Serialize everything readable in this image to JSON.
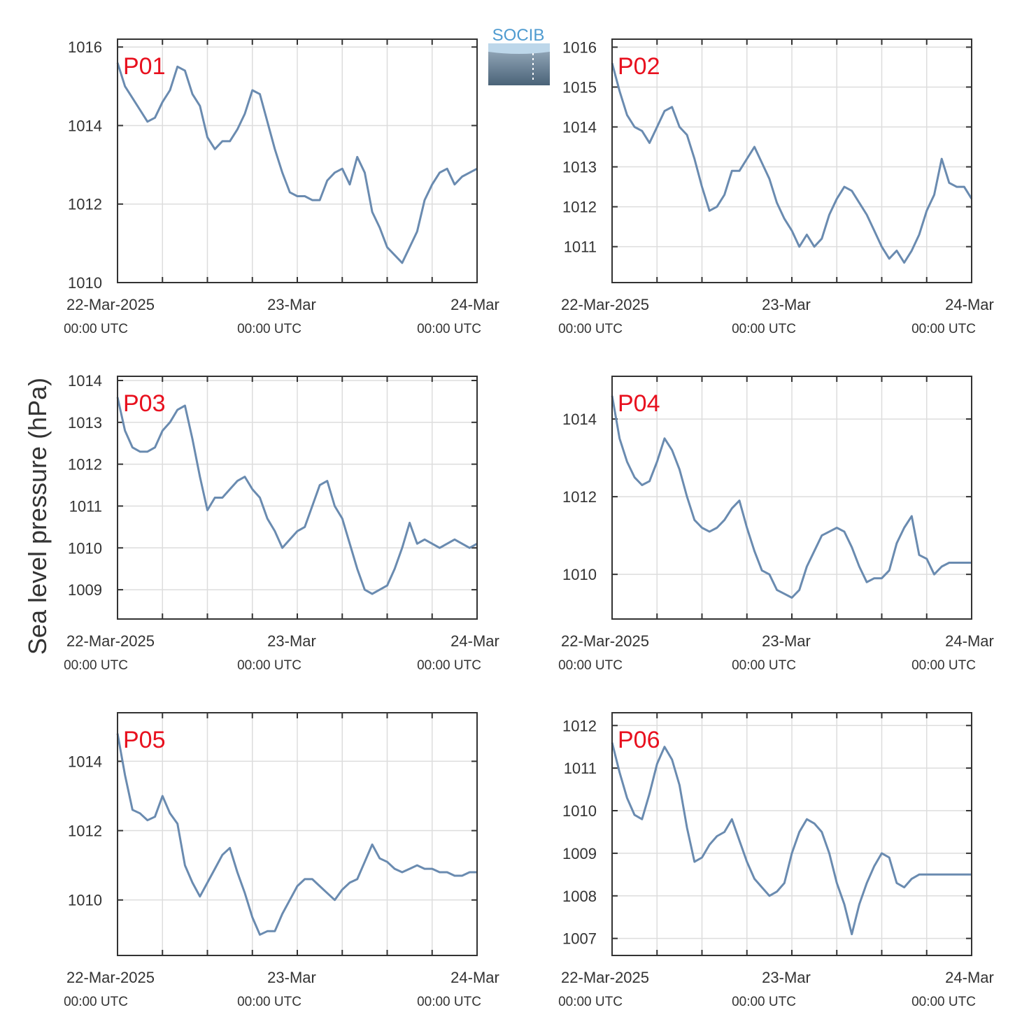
{
  "figure": {
    "ylabel": "Sea level pressure (hPa)",
    "logo_text": "SOCIB"
  },
  "colors": {
    "line": "#6a8bb0",
    "panel_label": "#e8101e",
    "grid": "#dddddd",
    "axis": "#333333"
  },
  "chart_data": [
    {
      "type": "line",
      "name": "P01",
      "x": [
        0,
        1,
        2,
        3,
        4,
        5,
        6,
        7,
        8,
        9,
        10,
        11,
        12,
        13,
        14,
        15,
        16,
        17,
        18,
        19,
        20,
        21,
        22,
        23,
        24,
        25,
        26,
        27,
        28,
        29,
        30,
        31,
        32,
        33,
        34,
        35,
        36,
        37,
        38,
        39,
        40,
        41,
        42,
        43,
        44,
        45,
        46,
        47,
        48
      ],
      "y": [
        1015.6,
        1015.0,
        1014.7,
        1014.4,
        1014.1,
        1014.2,
        1014.6,
        1014.9,
        1015.5,
        1015.4,
        1014.8,
        1014.5,
        1013.7,
        1013.4,
        1013.6,
        1013.6,
        1013.9,
        1014.3,
        1014.9,
        1014.8,
        1014.1,
        1013.4,
        1012.8,
        1012.3,
        1012.2,
        1012.2,
        1012.1,
        1012.1,
        1012.6,
        1012.8,
        1012.9,
        1012.5,
        1013.2,
        1012.8,
        1011.8,
        1011.4,
        1010.9,
        1010.7,
        1010.5,
        1010.9,
        1011.3,
        1012.1,
        1012.5,
        1012.8,
        1012.9,
        1012.5,
        1012.7,
        1012.8,
        1012.9
      ],
      "ylim": [
        1010,
        1016.2
      ],
      "yticks": [
        "1010",
        "1012",
        "1014",
        "1016"
      ],
      "xticks": [
        "22-Mar-2025",
        "23-Mar",
        "24-Mar"
      ],
      "xsub": [
        "00:00 UTC",
        "00:00 UTC",
        "00:00 UTC"
      ]
    },
    {
      "type": "line",
      "name": "P02",
      "x": [
        0,
        1,
        2,
        3,
        4,
        5,
        6,
        7,
        8,
        9,
        10,
        11,
        12,
        13,
        14,
        15,
        16,
        17,
        18,
        19,
        20,
        21,
        22,
        23,
        24,
        25,
        26,
        27,
        28,
        29,
        30,
        31,
        32,
        33,
        34,
        35,
        36,
        37,
        38,
        39,
        40,
        41,
        42,
        43,
        44,
        45,
        46,
        47,
        48
      ],
      "y": [
        1015.6,
        1014.9,
        1014.3,
        1014.0,
        1013.9,
        1013.6,
        1014.0,
        1014.4,
        1014.5,
        1014.0,
        1013.8,
        1013.2,
        1012.5,
        1011.9,
        1012.0,
        1012.3,
        1012.9,
        1012.9,
        1013.2,
        1013.5,
        1013.1,
        1012.7,
        1012.1,
        1011.7,
        1011.4,
        1011.0,
        1011.3,
        1011.0,
        1011.2,
        1011.8,
        1012.2,
        1012.5,
        1012.4,
        1012.1,
        1011.8,
        1011.4,
        1011.0,
        1010.7,
        1010.9,
        1010.6,
        1010.9,
        1011.3,
        1011.9,
        1012.3,
        1013.2,
        1012.6,
        1012.5,
        1012.5,
        1012.2
      ],
      "ylim": [
        1010.1,
        1016.2
      ],
      "yticks": [
        "1011",
        "1012",
        "1013",
        "1014",
        "1015",
        "1016"
      ],
      "xticks": [
        "22-Mar-2025",
        "23-Mar",
        "24-Mar"
      ],
      "xsub": [
        "00:00 UTC",
        "00:00 UTC",
        "00:00 UTC"
      ]
    },
    {
      "type": "line",
      "name": "P03",
      "x": [
        0,
        1,
        2,
        3,
        4,
        5,
        6,
        7,
        8,
        9,
        10,
        11,
        12,
        13,
        14,
        15,
        16,
        17,
        18,
        19,
        20,
        21,
        22,
        23,
        24,
        25,
        26,
        27,
        28,
        29,
        30,
        31,
        32,
        33,
        34,
        35,
        36,
        37,
        38,
        39,
        40,
        41,
        42,
        43,
        44,
        45,
        46,
        47,
        48
      ],
      "y": [
        1013.6,
        1012.8,
        1012.4,
        1012.3,
        1012.3,
        1012.4,
        1012.8,
        1013.0,
        1013.3,
        1013.4,
        1012.6,
        1011.7,
        1010.9,
        1011.2,
        1011.2,
        1011.4,
        1011.6,
        1011.7,
        1011.4,
        1011.2,
        1010.7,
        1010.4,
        1010.0,
        1010.2,
        1010.4,
        1010.5,
        1011.0,
        1011.5,
        1011.6,
        1011.0,
        1010.7,
        1010.1,
        1009.5,
        1009.0,
        1008.9,
        1009.0,
        1009.1,
        1009.5,
        1010.0,
        1010.6,
        1010.1,
        1010.2,
        1010.1,
        1010.0,
        1010.1,
        1010.2,
        1010.1,
        1010.0,
        1010.1
      ],
      "ylim": [
        1008.3,
        1014.1
      ],
      "yticks": [
        "1009",
        "1010",
        "1011",
        "1012",
        "1013",
        "1014"
      ],
      "xticks": [
        "22-Mar-2025",
        "23-Mar",
        "24-Mar"
      ],
      "xsub": [
        "00:00 UTC",
        "00:00 UTC",
        "00:00 UTC"
      ]
    },
    {
      "type": "line",
      "name": "P04",
      "x": [
        0,
        1,
        2,
        3,
        4,
        5,
        6,
        7,
        8,
        9,
        10,
        11,
        12,
        13,
        14,
        15,
        16,
        17,
        18,
        19,
        20,
        21,
        22,
        23,
        24,
        25,
        26,
        27,
        28,
        29,
        30,
        31,
        32,
        33,
        34,
        35,
        36,
        37,
        38,
        39,
        40,
        41,
        42,
        43,
        44,
        45,
        46,
        47,
        48
      ],
      "y": [
        1014.6,
        1013.5,
        1012.9,
        1012.5,
        1012.3,
        1012.4,
        1012.9,
        1013.5,
        1013.2,
        1012.7,
        1012.0,
        1011.4,
        1011.2,
        1011.1,
        1011.2,
        1011.4,
        1011.7,
        1011.9,
        1011.2,
        1010.6,
        1010.1,
        1010.0,
        1009.6,
        1009.5,
        1009.4,
        1009.6,
        1010.2,
        1010.6,
        1011.0,
        1011.1,
        1011.2,
        1011.1,
        1010.7,
        1010.2,
        1009.8,
        1009.9,
        1009.9,
        1010.1,
        1010.8,
        1011.2,
        1011.5,
        1010.5,
        1010.4,
        1010.0,
        1010.2,
        1010.3,
        1010.3,
        1010.3,
        1010.3
      ],
      "ylim": [
        1008.85,
        1015.1
      ],
      "yticks": [
        "1010",
        "1012",
        "1014"
      ],
      "xticks": [
        "22-Mar-2025",
        "23-Mar",
        "24-Mar"
      ],
      "xsub": [
        "00:00 UTC",
        "00:00 UTC",
        "00:00 UTC"
      ]
    },
    {
      "type": "line",
      "name": "P05",
      "x": [
        0,
        1,
        2,
        3,
        4,
        5,
        6,
        7,
        8,
        9,
        10,
        11,
        12,
        13,
        14,
        15,
        16,
        17,
        18,
        19,
        20,
        21,
        22,
        23,
        24,
        25,
        26,
        27,
        28,
        29,
        30,
        31,
        32,
        33,
        34,
        35,
        36,
        37,
        38,
        39,
        40,
        41,
        42,
        43,
        44,
        45,
        46,
        47,
        48
      ],
      "y": [
        1014.8,
        1013.6,
        1012.6,
        1012.5,
        1012.3,
        1012.4,
        1013.0,
        1012.5,
        1012.2,
        1011.0,
        1010.5,
        1010.1,
        1010.5,
        1010.9,
        1011.3,
        1011.5,
        1010.8,
        1010.2,
        1009.5,
        1009.0,
        1009.1,
        1009.1,
        1009.6,
        1010.0,
        1010.4,
        1010.6,
        1010.6,
        1010.4,
        1010.2,
        1010.0,
        1010.3,
        1010.5,
        1010.6,
        1011.1,
        1011.6,
        1011.2,
        1011.1,
        1010.9,
        1010.8,
        1010.9,
        1011.0,
        1010.9,
        1010.9,
        1010.8,
        1010.8,
        1010.7,
        1010.7,
        1010.8,
        1010.8
      ],
      "ylim": [
        1008.4,
        1015.4
      ],
      "yticks": [
        "1010",
        "1012",
        "1014"
      ],
      "xticks": [
        "22-Mar-2025",
        "23-Mar",
        "24-Mar"
      ],
      "xsub": [
        "00:00 UTC",
        "00:00 UTC",
        "00:00 UTC"
      ]
    },
    {
      "type": "line",
      "name": "P06",
      "x": [
        0,
        1,
        2,
        3,
        4,
        5,
        6,
        7,
        8,
        9,
        10,
        11,
        12,
        13,
        14,
        15,
        16,
        17,
        18,
        19,
        20,
        21,
        22,
        23,
        24,
        25,
        26,
        27,
        28,
        29,
        30,
        31,
        32,
        33,
        34,
        35,
        36,
        37,
        38,
        39,
        40,
        41,
        42,
        43,
        44,
        45,
        46,
        47,
        48
      ],
      "y": [
        1011.6,
        1010.9,
        1010.3,
        1009.9,
        1009.8,
        1010.4,
        1011.1,
        1011.5,
        1011.2,
        1010.6,
        1009.6,
        1008.8,
        1008.9,
        1009.2,
        1009.4,
        1009.5,
        1009.8,
        1009.3,
        1008.8,
        1008.4,
        1008.2,
        1008.0,
        1008.1,
        1008.3,
        1009.0,
        1009.5,
        1009.8,
        1009.7,
        1009.5,
        1009.0,
        1008.3,
        1007.8,
        1007.1,
        1007.8,
        1008.3,
        1008.7,
        1009.0,
        1008.9,
        1008.3,
        1008.2,
        1008.4,
        1008.5,
        1008.5,
        1008.5,
        1008.5,
        1008.5,
        1008.5,
        1008.5,
        1008.5
      ],
      "ylim": [
        1006.6,
        1012.3
      ],
      "yticks": [
        "1007",
        "1008",
        "1009",
        "1010",
        "1011",
        "1012"
      ],
      "xticks": [
        "22-Mar-2025",
        "23-Mar",
        "24-Mar"
      ],
      "xsub": [
        "00:00 UTC",
        "00:00 UTC",
        "00:00 UTC"
      ]
    }
  ]
}
